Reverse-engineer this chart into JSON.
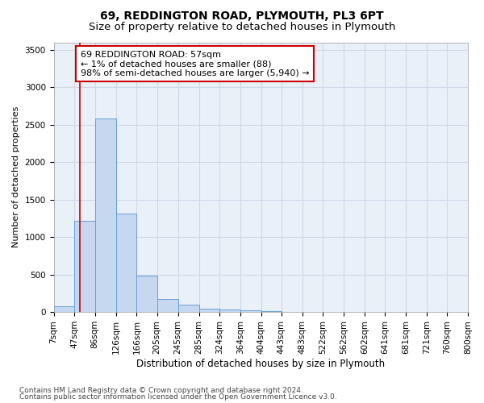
{
  "title1": "69, REDDINGTON ROAD, PLYMOUTH, PL3 6PT",
  "title2": "Size of property relative to detached houses in Plymouth",
  "xlabel": "Distribution of detached houses by size in Plymouth",
  "ylabel": "Number of detached properties",
  "bar_edges": [
    7,
    47,
    86,
    126,
    166,
    205,
    245,
    285,
    324,
    364,
    404,
    443,
    483,
    522,
    562,
    602,
    641,
    681,
    721,
    760,
    800
  ],
  "bar_heights": [
    75,
    1220,
    2580,
    1310,
    480,
    175,
    95,
    45,
    30,
    18,
    8,
    4,
    2,
    1,
    0,
    0,
    0,
    0,
    0,
    0
  ],
  "bar_color": "#c5d8f0",
  "bar_edge_color": "#6a9fd8",
  "grid_color": "#d0d8e8",
  "bg_color": "#eaf0f8",
  "annotation_text": "69 REDDINGTON ROAD: 57sqm\n← 1% of detached houses are smaller (88)\n98% of semi-detached houses are larger (5,940) →",
  "annotation_box_color": "#ffffff",
  "annotation_box_edge_color": "#cc0000",
  "vline_x": 57,
  "vline_color": "#cc0000",
  "ylim": [
    0,
    3600
  ],
  "yticks": [
    0,
    500,
    1000,
    1500,
    2000,
    2500,
    3000,
    3500
  ],
  "footer1": "Contains HM Land Registry data © Crown copyright and database right 2024.",
  "footer2": "Contains public sector information licensed under the Open Government Licence v3.0.",
  "title1_fontsize": 10,
  "title2_fontsize": 9.5,
  "xlabel_fontsize": 8.5,
  "ylabel_fontsize": 8,
  "tick_fontsize": 7.5,
  "annotation_fontsize": 8,
  "footer_fontsize": 6.5
}
